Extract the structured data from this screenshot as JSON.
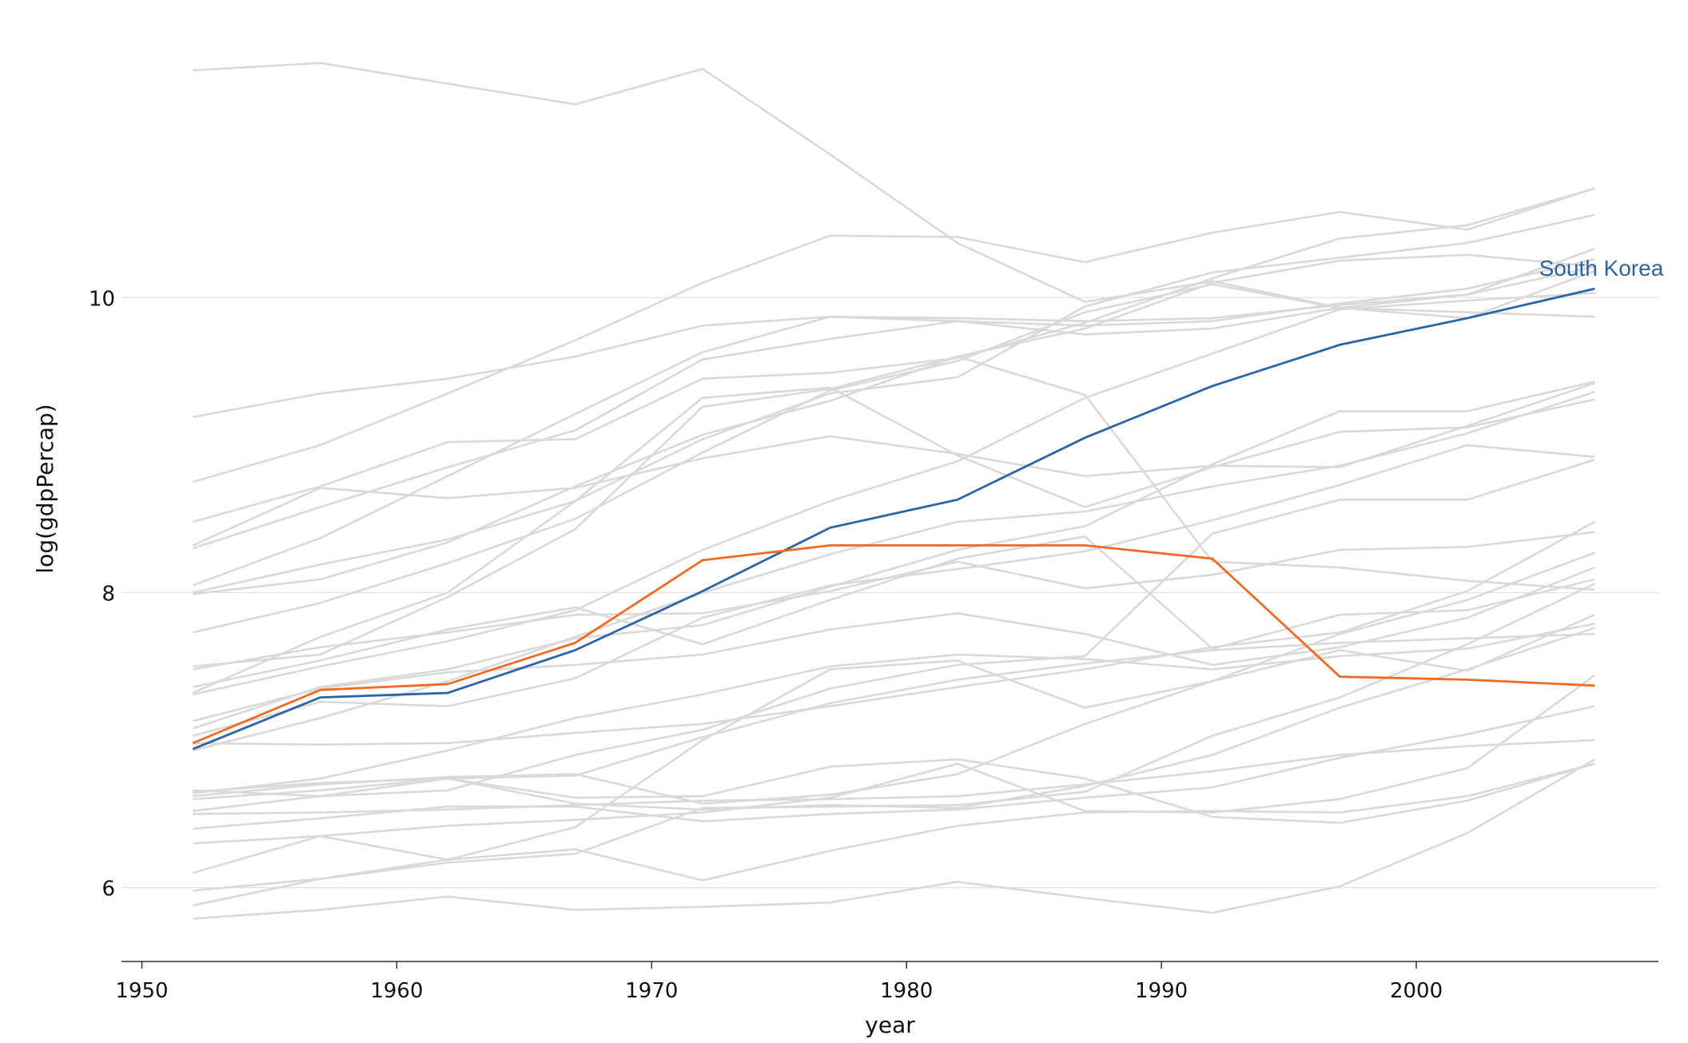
{
  "chart_data": {
    "type": "line",
    "xlabel": "year",
    "ylabel": "log(gdpPercap)",
    "xlim": [
      1949.2,
      2009.5
    ],
    "ylim": [
      5.5,
      11.8
    ],
    "x_ticks": [
      "1950",
      "1960",
      "1970",
      "1980",
      "1990",
      "2000"
    ],
    "y_ticks": [
      "6",
      "8",
      "10"
    ],
    "grid": "horizontal",
    "x": [
      1952,
      1957,
      1962,
      1967,
      1972,
      1977,
      1982,
      1987,
      1992,
      1997,
      2002,
      2007
    ],
    "colors": {
      "background_series": "#d9d9d9",
      "korea": "#2d64a3",
      "other_highlight": "#f26b21"
    },
    "highlight_series": [
      {
        "name": "South Korea",
        "color": "#2d64a3",
        "values": [
          6.94,
          7.29,
          7.32,
          7.61,
          8.01,
          8.44,
          8.63,
          9.05,
          9.4,
          9.68,
          9.86,
          10.06
        ]
      },
      {
        "name": "",
        "color": "#f26b21",
        "values": [
          6.98,
          7.34,
          7.38,
          7.66,
          8.22,
          8.32,
          8.32,
          8.32,
          8.23,
          7.43,
          7.41,
          7.37
        ]
      }
    ],
    "background_series": [
      {
        "values": [
          11.54,
          11.59,
          11.45,
          11.31,
          11.55,
          10.97,
          10.37,
          9.97,
          10.11,
          9.93,
          9.9,
          9.87
        ]
      },
      {
        "values": [
          9.19,
          9.35,
          9.45,
          9.6,
          9.81,
          9.87,
          9.86,
          9.84,
          9.86,
          9.95,
          10.02,
          10.21
        ]
      },
      {
        "values": [
          8.75,
          9.0,
          9.35,
          9.71,
          10.1,
          10.42,
          10.41,
          10.24,
          10.44,
          10.58,
          10.46,
          10.74
        ]
      },
      {
        "values": [
          8.48,
          8.72,
          9.02,
          9.04,
          9.45,
          9.49,
          9.59,
          9.83,
          10.13,
          10.4,
          10.49,
          10.74
        ]
      },
      {
        "values": [
          8.32,
          8.71,
          8.64,
          8.71,
          8.91,
          9.06,
          8.94,
          8.79,
          8.86,
          8.85,
          9.13,
          9.42
        ]
      },
      {
        "values": [
          8.3,
          8.58,
          8.85,
          9.1,
          9.58,
          9.72,
          9.84,
          9.75,
          9.79,
          9.93,
          10.02,
          10.33
        ]
      },
      {
        "values": [
          8.05,
          8.37,
          8.79,
          9.21,
          9.63,
          9.87,
          9.84,
          9.81,
          9.84,
          9.96,
          10.06,
          10.26
        ]
      },
      {
        "values": [
          8.0,
          8.19,
          8.36,
          8.62,
          9.04,
          9.35,
          9.46,
          9.94,
          10.17,
          10.27,
          10.37,
          10.56
        ]
      },
      {
        "values": [
          7.99,
          8.09,
          8.34,
          8.72,
          9.07,
          9.3,
          9.6,
          9.79,
          10.1,
          10.25,
          10.29,
          10.21
        ]
      },
      {
        "values": [
          7.73,
          7.93,
          8.2,
          8.5,
          8.95,
          9.37,
          9.57,
          9.9,
          10.09,
          9.93,
          9.86,
          10.18
        ]
      },
      {
        "values": [
          7.5,
          7.58,
          7.97,
          8.43,
          9.26,
          9.38,
          9.6,
          9.34,
          8.21,
          8.17,
          8.08,
          8.02
        ]
      },
      {
        "values": [
          7.48,
          7.63,
          7.73,
          7.85,
          7.86,
          8.01,
          8.21,
          8.03,
          8.12,
          8.29,
          8.31,
          8.41
        ]
      },
      {
        "values": [
          7.36,
          7.54,
          7.75,
          7.9,
          7.65,
          7.95,
          8.23,
          8.38,
          7.62,
          7.85,
          7.88,
          8.09
        ]
      },
      {
        "values": [
          7.32,
          7.7,
          8.0,
          8.62,
          9.32,
          9.39,
          8.93,
          8.58,
          8.85,
          9.09,
          9.12,
          9.31
        ]
      },
      {
        "values": [
          7.31,
          7.5,
          7.67,
          7.88,
          8.29,
          8.62,
          8.89,
          9.32,
          9.62,
          9.92,
          9.98,
          10.03
        ]
      },
      {
        "values": [
          7.13,
          7.35,
          7.46,
          7.51,
          7.58,
          7.75,
          7.86,
          7.72,
          7.51,
          7.63,
          7.83,
          8.17
        ]
      },
      {
        "values": [
          7.08,
          7.36,
          7.48,
          7.69,
          7.78,
          8.04,
          8.29,
          8.45,
          8.87,
          9.23,
          9.23,
          9.43
        ]
      },
      {
        "values": [
          6.98,
          6.97,
          6.98,
          7.05,
          7.11,
          7.23,
          7.36,
          7.48,
          7.63,
          7.73,
          8.01,
          8.48
        ]
      },
      {
        "values": [
          6.93,
          7.15,
          7.4,
          7.7,
          8.0,
          8.26,
          8.48,
          8.55,
          8.72,
          8.86,
          9.08,
          9.36
        ]
      },
      {
        "values": [
          6.65,
          6.71,
          6.74,
          6.76,
          7.02,
          7.25,
          7.41,
          7.52,
          7.61,
          7.66,
          7.69,
          7.72
        ]
      },
      {
        "values": [
          6.64,
          6.74,
          6.93,
          7.15,
          7.31,
          7.5,
          7.58,
          7.55,
          7.48,
          7.57,
          7.62,
          7.79
        ]
      },
      {
        "values": [
          6.62,
          6.7,
          6.75,
          6.77,
          6.57,
          6.63,
          6.77,
          7.11,
          7.4,
          7.72,
          7.95,
          8.27
        ]
      },
      {
        "values": [
          6.6,
          6.66,
          6.74,
          6.61,
          6.62,
          6.82,
          6.87,
          6.74,
          6.48,
          6.44,
          6.59,
          6.84
        ]
      },
      {
        "values": [
          6.52,
          6.62,
          6.74,
          6.57,
          6.53,
          6.56,
          6.54,
          6.69,
          6.9,
          7.22,
          7.48,
          7.76
        ]
      },
      {
        "values": [
          6.5,
          6.51,
          6.53,
          6.56,
          6.59,
          6.6,
          6.62,
          6.7,
          6.79,
          6.9,
          6.96,
          7.0
        ]
      },
      {
        "values": [
          6.4,
          6.47,
          6.55,
          6.55,
          6.45,
          6.5,
          6.53,
          6.61,
          6.68,
          6.88,
          7.04,
          7.23
        ]
      },
      {
        "values": [
          6.3,
          6.35,
          6.42,
          6.46,
          6.51,
          6.61,
          6.84,
          6.52,
          6.51,
          6.6,
          6.81,
          7.44
        ]
      },
      {
        "values": [
          6.1,
          6.35,
          6.19,
          6.26,
          6.05,
          6.25,
          6.42,
          6.51,
          6.52,
          6.51,
          6.62,
          6.84
        ]
      },
      {
        "values": [
          5.98,
          6.06,
          6.19,
          6.41,
          7.0,
          7.48,
          7.54,
          7.22,
          7.4,
          7.61,
          7.47,
          7.85
        ]
      },
      {
        "values": [
          5.88,
          6.06,
          6.17,
          6.23,
          6.54,
          6.55,
          6.56,
          6.65,
          7.03,
          7.29,
          7.65,
          8.06
        ]
      },
      {
        "values": [
          5.79,
          5.85,
          5.94,
          5.85,
          5.87,
          5.9,
          6.04,
          5.93,
          5.83,
          6.01,
          6.37,
          6.87
        ]
      },
      {
        "values": [
          6.66,
          6.62,
          6.66,
          6.9,
          7.07,
          7.35,
          7.51,
          7.57,
          8.4,
          8.63,
          8.63,
          8.9
        ]
      },
      {
        "values": [
          7.03,
          7.26,
          7.23,
          7.42,
          7.83,
          8.05,
          8.16,
          8.28,
          8.49,
          8.73,
          9.0,
          8.92
        ]
      }
    ]
  }
}
